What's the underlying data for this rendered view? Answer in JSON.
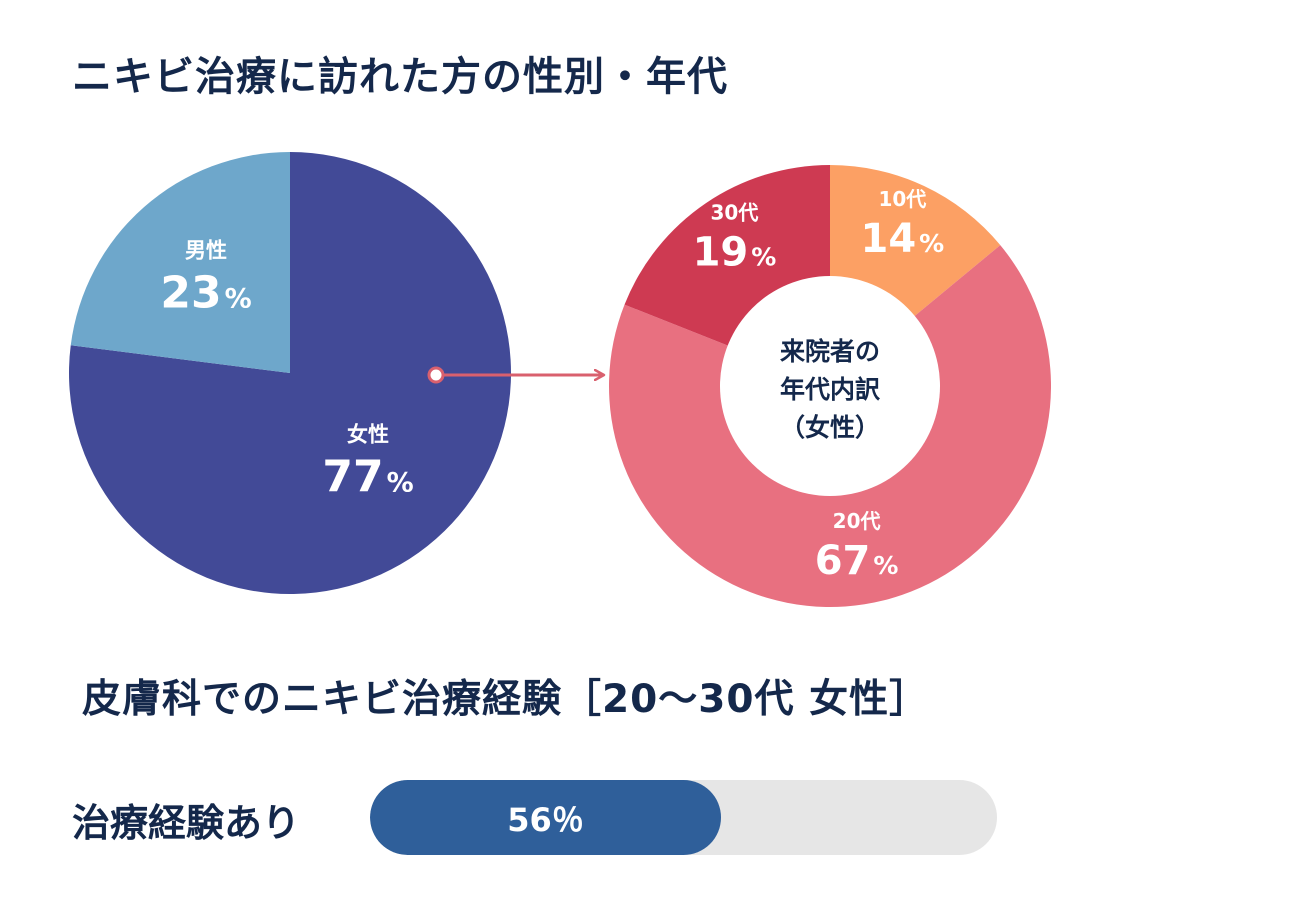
{
  "title": "ニキビ治療に訪れた方の性別・年代",
  "colors": {
    "text": "#14284b",
    "arrow": "#d9606e",
    "bar_track": "#e6e6e6",
    "bar_fill": "#2f5f9a"
  },
  "chart_data": [
    {
      "type": "pie",
      "title": "",
      "slices": [
        {
          "label": "女性",
          "value": 77,
          "display": "77",
          "unit": "%",
          "color": "#424a97"
        },
        {
          "label": "男性",
          "value": 23,
          "display": "23",
          "unit": "%",
          "color": "#6ea7cb"
        }
      ]
    },
    {
      "type": "pie",
      "subtype": "donut",
      "center_label": [
        "来院者の",
        "年代内訳",
        "（女性）"
      ],
      "slices": [
        {
          "label": "10代",
          "value": 14,
          "display": "14",
          "unit": "%",
          "color": "#fca064"
        },
        {
          "label": "20代",
          "value": 67,
          "display": "67",
          "unit": "%",
          "color": "#e87080"
        },
        {
          "label": "30代",
          "value": 19,
          "display": "19",
          "unit": "%",
          "color": "#ce3a52"
        }
      ]
    },
    {
      "type": "bar",
      "title": "皮膚科でのニキビ治療経験［20〜30代 女性］",
      "categories": [
        "治療経験あり"
      ],
      "values": [
        56
      ],
      "value_label": "56％",
      "xlim": [
        0,
        100
      ]
    }
  ]
}
